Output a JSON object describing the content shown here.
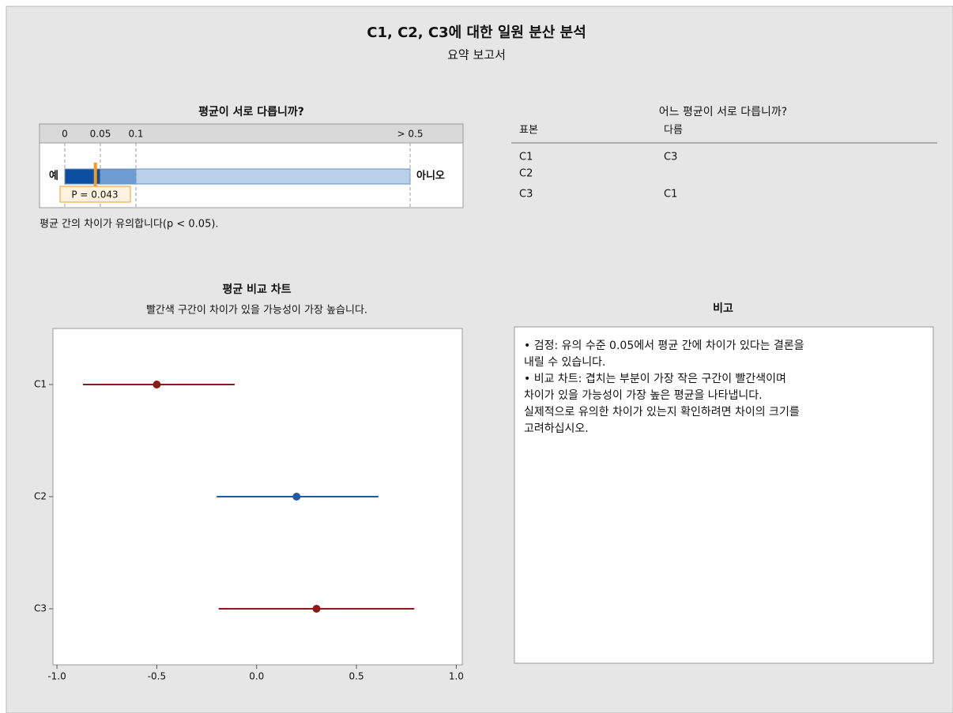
{
  "header": {
    "title": "C1, C2, C3에 대한 일원 분산 분석",
    "subtitle": "요약 보고서"
  },
  "pvalue": {
    "title": "평균이 서로 다릅니까?",
    "ticks": [
      0,
      0.05,
      0.1,
      {
        "value": 0.5,
        "label": "> 0.5"
      }
    ],
    "colors": [
      "#0b4fa0",
      "#6e9bd2",
      "#b8cfea"
    ],
    "yes_label": "예",
    "no_label": "아니오",
    "p": 0.043,
    "p_label": "P = 0.043",
    "conclusion": "평균 간의 차이가 유의합니다(p < 0.05)."
  },
  "table": {
    "title": "어느 평균이 서로 다릅니까?",
    "header": [
      "표본",
      "다름"
    ],
    "rows": [
      {
        "sample": "C1",
        "differs": "C3"
      },
      {
        "sample": "C2"
      },
      {
        "sample": "C3",
        "differs": "C1"
      }
    ]
  },
  "chart_data": {
    "type": "interval",
    "title": "평균 비교 차트",
    "subtitle": "빨간색 구간이 차이가 있을 가능성이 가장 높습니다.",
    "categories": [
      "C1",
      "C2",
      "C3"
    ],
    "means": [
      -0.5,
      0.2,
      0.3
    ],
    "lower": [
      -0.87,
      -0.2,
      -0.19
    ],
    "upper": [
      -0.11,
      0.61,
      0.79
    ],
    "colors": [
      "#8b1a1a",
      "#1f5aa6",
      "#8b1a1a"
    ],
    "xlim": [
      -1.02,
      1.03
    ],
    "xticks": [
      {
        "value": -1,
        "label": "-1.0"
      },
      {
        "value": -0.5,
        "label": "-0.5"
      },
      {
        "value": 0,
        "label": "0.0"
      },
      0.5,
      {
        "value": 1,
        "label": "1.0"
      }
    ]
  },
  "notes": {
    "title": "비고",
    "lines": [
      "• 검정: 유의 수준 0.05에서 평균 간에 차이가 있다는 결론을",
      "내릴 수 있습니다.",
      "• 비교 차트: 겹치는 부분이 가장 작은 구간이 빨간색이며",
      "차이가 있을 가능성이 가장 높은 평균을 나타냅니다.",
      "실제적으로 유의한 차이가 있는지 확인하려면 차이의 크기를",
      "고려하십시오."
    ]
  }
}
